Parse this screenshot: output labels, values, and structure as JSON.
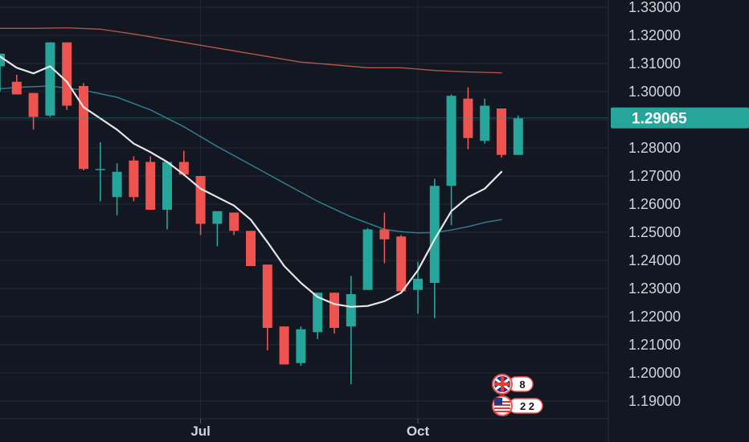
{
  "chart_data": {
    "type": "candlestick",
    "ylim": [
      1.185,
      1.337
    ],
    "y_ticks": [
      "1.33000",
      "1.32000",
      "1.31000",
      "1.30000",
      "1.29000",
      "1.28000",
      "1.27000",
      "1.26000",
      "1.25000",
      "1.24000",
      "1.23000",
      "1.22000",
      "1.21000",
      "1.20000",
      "1.19000"
    ],
    "x_labels": [
      {
        "label": "Jul",
        "index": 12
      },
      {
        "label": "Oct",
        "index": 25
      }
    ],
    "last_price": "1.29065",
    "grid": true,
    "colors": {
      "background": "#131722",
      "up": "#26a69a",
      "down": "#ef5350",
      "grid": "#232838",
      "ma_fast": "#e6e6e6",
      "ma_mid": "#2e7d8a",
      "ma_slow": "#b5584b",
      "axis_text": "#d1d4dc",
      "price_tag": "#26a69a"
    },
    "candles": [
      {
        "o": 1.309,
        "h": 1.3135,
        "l": 1.3,
        "c": 1.3135
      },
      {
        "o": 1.3035,
        "h": 1.306,
        "l": 1.299,
        "c": 1.299
      },
      {
        "o": 1.2995,
        "h": 1.2995,
        "l": 1.2865,
        "c": 1.291
      },
      {
        "o": 1.2915,
        "h": 1.3175,
        "l": 1.291,
        "c": 1.3175
      },
      {
        "o": 1.3175,
        "h": 1.3175,
        "l": 1.2935,
        "c": 1.295
      },
      {
        "o": 1.302,
        "h": 1.303,
        "l": 1.272,
        "c": 1.2725
      },
      {
        "o": 1.2725,
        "h": 1.282,
        "l": 1.261,
        "c": 1.2725
      },
      {
        "o": 1.2625,
        "h": 1.2745,
        "l": 1.256,
        "c": 1.2715
      },
      {
        "o": 1.2755,
        "h": 1.277,
        "l": 1.261,
        "c": 1.2625
      },
      {
        "o": 1.275,
        "h": 1.277,
        "l": 1.258,
        "c": 1.258
      },
      {
        "o": 1.258,
        "h": 1.275,
        "l": 1.251,
        "c": 1.275
      },
      {
        "o": 1.275,
        "h": 1.279,
        "l": 1.27,
        "c": 1.2705
      },
      {
        "o": 1.27,
        "h": 1.27,
        "l": 1.249,
        "c": 1.253
      },
      {
        "o": 1.253,
        "h": 1.257,
        "l": 1.245,
        "c": 1.2575
      },
      {
        "o": 1.257,
        "h": 1.257,
        "l": 1.249,
        "c": 1.2505
      },
      {
        "o": 1.2505,
        "h": 1.2505,
        "l": 1.238,
        "c": 1.238
      },
      {
        "o": 1.2385,
        "h": 1.2385,
        "l": 1.208,
        "c": 1.216
      },
      {
        "o": 1.2165,
        "h": 1.2165,
        "l": 1.203,
        "c": 1.203
      },
      {
        "o": 1.2035,
        "h": 1.2165,
        "l": 1.2025,
        "c": 1.2155
      },
      {
        "o": 1.2145,
        "h": 1.2285,
        "l": 1.212,
        "c": 1.2285
      },
      {
        "o": 1.2285,
        "h": 1.2285,
        "l": 1.214,
        "c": 1.216
      },
      {
        "o": 1.2165,
        "h": 1.2345,
        "l": 1.196,
        "c": 1.228
      },
      {
        "o": 1.2295,
        "h": 1.2515,
        "l": 1.2295,
        "c": 1.251
      },
      {
        "o": 1.251,
        "h": 1.257,
        "l": 1.239,
        "c": 1.2475
      },
      {
        "o": 1.2485,
        "h": 1.249,
        "l": 1.229,
        "c": 1.229
      },
      {
        "o": 1.2295,
        "h": 1.2395,
        "l": 1.221,
        "c": 1.2335
      },
      {
        "o": 1.232,
        "h": 1.269,
        "l": 1.2195,
        "c": 1.2665
      },
      {
        "o": 1.2665,
        "h": 1.299,
        "l": 1.2525,
        "c": 1.2985
      },
      {
        "o": 1.2975,
        "h": 1.3015,
        "l": 1.2795,
        "c": 1.2835
      },
      {
        "o": 1.2825,
        "h": 1.2975,
        "l": 1.2815,
        "c": 1.295
      },
      {
        "o": 1.294,
        "h": 1.294,
        "l": 1.2765,
        "c": 1.2775
      },
      {
        "o": 1.2775,
        "h": 1.2915,
        "l": 1.2775,
        "c": 1.2905
      }
    ],
    "ma_fast": [
      {
        "i": 0,
        "v": 1.3125
      },
      {
        "i": 1,
        "v": 1.3085
      },
      {
        "i": 2,
        "v": 1.3065
      },
      {
        "i": 3,
        "v": 1.309
      },
      {
        "i": 4,
        "v": 1.3035
      },
      {
        "i": 5,
        "v": 1.2945
      },
      {
        "i": 6,
        "v": 1.2905
      },
      {
        "i": 7,
        "v": 1.2865
      },
      {
        "i": 8,
        "v": 1.2815
      },
      {
        "i": 9,
        "v": 1.2785
      },
      {
        "i": 10,
        "v": 1.275
      },
      {
        "i": 11,
        "v": 1.2705
      },
      {
        "i": 12,
        "v": 1.2655
      },
      {
        "i": 13,
        "v": 1.2625
      },
      {
        "i": 14,
        "v": 1.2595
      },
      {
        "i": 15,
        "v": 1.2545
      },
      {
        "i": 16,
        "v": 1.2465
      },
      {
        "i": 17,
        "v": 1.238
      },
      {
        "i": 18,
        "v": 1.232
      },
      {
        "i": 19,
        "v": 1.227
      },
      {
        "i": 20,
        "v": 1.2245
      },
      {
        "i": 21,
        "v": 1.2235
      },
      {
        "i": 22,
        "v": 1.2238
      },
      {
        "i": 23,
        "v": 1.2255
      },
      {
        "i": 24,
        "v": 1.2285
      },
      {
        "i": 25,
        "v": 1.2365
      },
      {
        "i": 26,
        "v": 1.2475
      },
      {
        "i": 27,
        "v": 1.2575
      },
      {
        "i": 28,
        "v": 1.2625
      },
      {
        "i": 29,
        "v": 1.2655
      },
      {
        "i": 30,
        "v": 1.2715
      }
    ],
    "ma_mid": [
      {
        "i": -1,
        "v": 1.3005
      },
      {
        "i": 1,
        "v": 1.3015
      },
      {
        "i": 3,
        "v": 1.302
      },
      {
        "i": 5,
        "v": 1.3005
      },
      {
        "i": 7,
        "v": 1.298
      },
      {
        "i": 9,
        "v": 1.2935
      },
      {
        "i": 11,
        "v": 1.2875
      },
      {
        "i": 13,
        "v": 1.2805
      },
      {
        "i": 15,
        "v": 1.274
      },
      {
        "i": 17,
        "v": 1.2675
      },
      {
        "i": 19,
        "v": 1.261
      },
      {
        "i": 21,
        "v": 1.2555
      },
      {
        "i": 23,
        "v": 1.251
      },
      {
        "i": 24,
        "v": 1.2502
      },
      {
        "i": 25,
        "v": 1.2498
      },
      {
        "i": 26,
        "v": 1.2499
      },
      {
        "i": 27,
        "v": 1.2508
      },
      {
        "i": 28,
        "v": 1.252
      },
      {
        "i": 29,
        "v": 1.2535
      },
      {
        "i": 30,
        "v": 1.2545
      }
    ],
    "ma_slow": [
      {
        "i": -1,
        "v": 1.3225
      },
      {
        "i": 2,
        "v": 1.3225
      },
      {
        "i": 4,
        "v": 1.3227
      },
      {
        "i": 6,
        "v": 1.3222
      },
      {
        "i": 8,
        "v": 1.3205
      },
      {
        "i": 10,
        "v": 1.3185
      },
      {
        "i": 12,
        "v": 1.3165
      },
      {
        "i": 14,
        "v": 1.3145
      },
      {
        "i": 16,
        "v": 1.3125
      },
      {
        "i": 18,
        "v": 1.3105
      },
      {
        "i": 20,
        "v": 1.3095
      },
      {
        "i": 22,
        "v": 1.3085
      },
      {
        "i": 24,
        "v": 1.3085
      },
      {
        "i": 26,
        "v": 1.3075
      },
      {
        "i": 28,
        "v": 1.307
      },
      {
        "i": 30,
        "v": 1.3067
      }
    ]
  },
  "events": [
    {
      "name": "uk-flag-icon",
      "count": "8"
    },
    {
      "name": "us-flag-icon",
      "count": "2 2"
    }
  ]
}
